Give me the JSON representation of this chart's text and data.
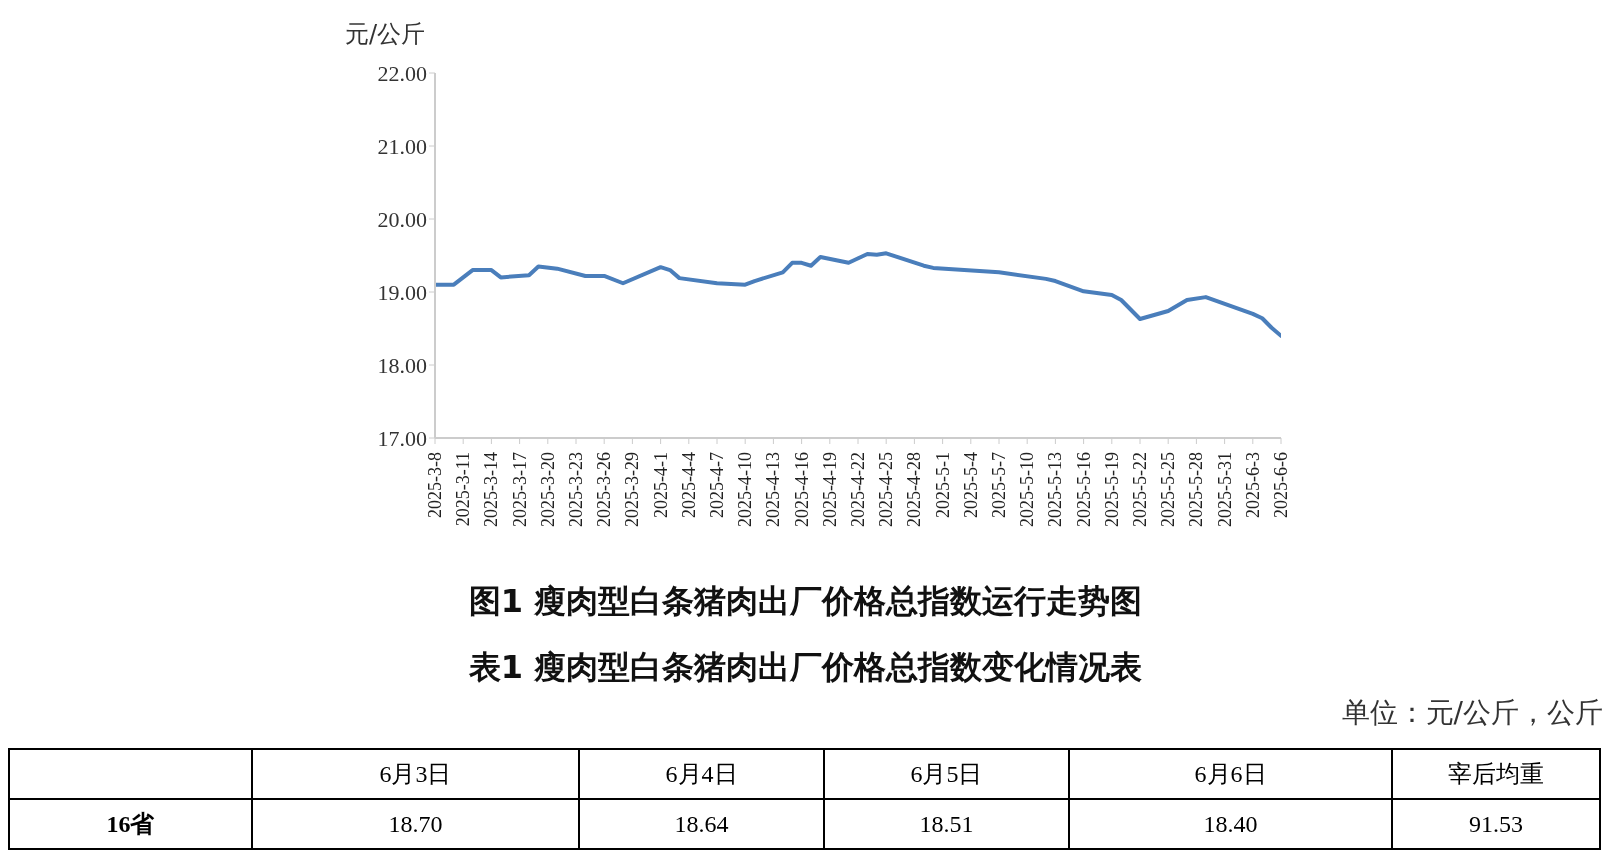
{
  "chart_data": [
    {
      "type": "line",
      "title": "图1  瘦肉型白条猪肉出厂价格总指数运行走势图",
      "ylabel": "元/公斤",
      "x": [
        "2025-03-08",
        "2025-03-10",
        "2025-03-12",
        "2025-03-14",
        "2025-03-15",
        "2025-03-18",
        "2025-03-19",
        "2025-03-21",
        "2025-03-24",
        "2025-03-26",
        "2025-03-28",
        "2025-04-01",
        "2025-04-02",
        "2025-04-03",
        "2025-04-07",
        "2025-04-10",
        "2025-04-11",
        "2025-04-14",
        "2025-04-15",
        "2025-04-16",
        "2025-04-17",
        "2025-04-18",
        "2025-04-21",
        "2025-04-23",
        "2025-04-24",
        "2025-04-25",
        "2025-04-29",
        "2025-04-30",
        "2025-05-07",
        "2025-05-12",
        "2025-05-13",
        "2025-05-16",
        "2025-05-19",
        "2025-05-20",
        "2025-05-22",
        "2025-05-25",
        "2025-05-27",
        "2025-05-29",
        "2025-06-03",
        "2025-06-04",
        "2025-06-05",
        "2025-06-06"
      ],
      "series": [
        {
          "color": "#4a7ebb",
          "values": [
            19.1,
            19.1,
            19.3,
            19.3,
            19.2,
            19.23,
            19.35,
            19.32,
            19.22,
            19.22,
            19.12,
            19.34,
            19.3,
            19.19,
            19.12,
            19.1,
            19.15,
            19.27,
            19.4,
            19.4,
            19.36,
            19.48,
            19.4,
            19.52,
            19.51,
            19.53,
            19.36,
            19.33,
            19.27,
            19.18,
            19.15,
            19.01,
            18.96,
            18.89,
            18.63,
            18.74,
            18.89,
            18.93,
            18.7,
            18.64,
            18.51,
            18.4
          ]
        }
      ],
      "xlim": [
        "2025-03-08",
        "2025-06-06"
      ],
      "xticks": [
        {
          "value": "2025-03-08",
          "label": "2025-3-8"
        },
        {
          "value": "2025-03-11",
          "label": "2025-3-11"
        },
        {
          "value": "2025-03-14",
          "label": "2025-3-14"
        },
        {
          "value": "2025-03-17",
          "label": "2025-3-17"
        },
        {
          "value": "2025-03-20",
          "label": "2025-3-20"
        },
        {
          "value": "2025-03-23",
          "label": "2025-3-23"
        },
        {
          "value": "2025-03-26",
          "label": "2025-3-26"
        },
        {
          "value": "2025-03-29",
          "label": "2025-3-29"
        },
        {
          "value": "2025-04-01",
          "label": "2025-4-1"
        },
        {
          "value": "2025-04-04",
          "label": "2025-4-4"
        },
        {
          "value": "2025-04-07",
          "label": "2025-4-7"
        },
        {
          "value": "2025-04-10",
          "label": "2025-4-10"
        },
        {
          "value": "2025-04-13",
          "label": "2025-4-13"
        },
        {
          "value": "2025-04-16",
          "label": "2025-4-16"
        },
        {
          "value": "2025-04-19",
          "label": "2025-4-19"
        },
        {
          "value": "2025-04-22",
          "label": "2025-4-22"
        },
        {
          "value": "2025-04-25",
          "label": "2025-4-25"
        },
        {
          "value": "2025-04-28",
          "label": "2025-4-28"
        },
        {
          "value": "2025-05-01",
          "label": "2025-5-1"
        },
        {
          "value": "2025-05-04",
          "label": "2025-5-4"
        },
        {
          "value": "2025-05-07",
          "label": "2025-5-7"
        },
        {
          "value": "2025-05-10",
          "label": "2025-5-10"
        },
        {
          "value": "2025-05-13",
          "label": "2025-5-13"
        },
        {
          "value": "2025-05-16",
          "label": "2025-5-16"
        },
        {
          "value": "2025-05-19",
          "label": "2025-5-19"
        },
        {
          "value": "2025-05-22",
          "label": "2025-5-22"
        },
        {
          "value": "2025-05-25",
          "label": "2025-5-25"
        },
        {
          "value": "2025-05-28",
          "label": "2025-5-28"
        },
        {
          "value": "2025-05-31",
          "label": "2025-5-31"
        },
        {
          "value": "2025-06-03",
          "label": "2025-6-3"
        },
        {
          "value": "2025-06-06",
          "label": "2025-6-6"
        }
      ],
      "ylim": [
        17,
        22
      ],
      "yticks": [
        {
          "value": 17,
          "label": "17.00"
        },
        {
          "value": 18,
          "label": "18.00"
        },
        {
          "value": 19,
          "label": "19.00"
        },
        {
          "value": 20,
          "label": "20.00"
        },
        {
          "value": 21,
          "label": "21.00"
        },
        {
          "value": 22,
          "label": "22.00"
        }
      ],
      "grid": false,
      "legend": false,
      "marker": "none",
      "line_style": "solid"
    },
    {
      "type": "other",
      "title": "表1  瘦肉型白条猪肉出厂价格总指数变化情况表",
      "subtitle": "单位：元/公斤，公斤",
      "categories": [
        "6月3日",
        "6月4日",
        "6月5日",
        "6月6日",
        "宰后均重"
      ],
      "y_categories": [
        "16省"
      ],
      "cell_labels": [
        [
          "18.70",
          "18.64",
          "18.51",
          "18.40",
          "91.53"
        ]
      ]
    }
  ]
}
